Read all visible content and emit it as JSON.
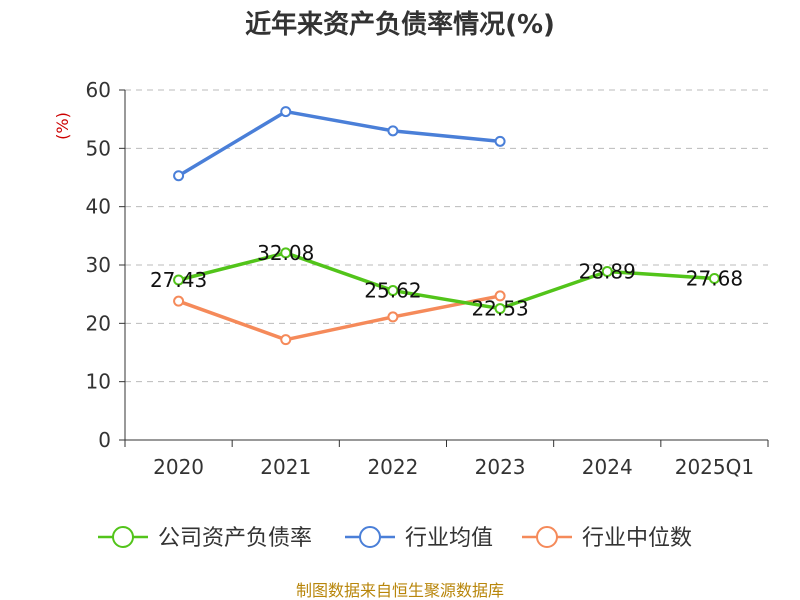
{
  "chart_data": {
    "type": "line",
    "title": "近年来资产负债率情况(%)",
    "unit_label": "(%)",
    "categories": [
      "2020",
      "2021",
      "2022",
      "2023",
      "2024",
      "2025Q1"
    ],
    "yticks": [
      "0",
      "10",
      "20",
      "30",
      "40",
      "50",
      "60"
    ],
    "ylim": [
      0,
      60
    ],
    "grid": true,
    "legend_position": "bottom",
    "series": [
      {
        "name": "公司资产负债率",
        "color": "#52c41a",
        "values": [
          27.43,
          32.08,
          25.62,
          22.53,
          28.89,
          27.68
        ],
        "labels": [
          "27.43",
          "32.08",
          "25.62",
          "22.53",
          "28.89",
          "27.68"
        ]
      },
      {
        "name": "行业均值",
        "color": "#4a7fd8",
        "values": [
          45.3,
          56.3,
          53.0,
          51.2,
          null,
          null
        ]
      },
      {
        "name": "行业中位数",
        "color": "#f58a5a",
        "values": [
          23.8,
          17.2,
          21.1,
          24.7,
          null,
          null
        ]
      }
    ]
  },
  "source_text": "制图数据来自恒生聚源数据库"
}
